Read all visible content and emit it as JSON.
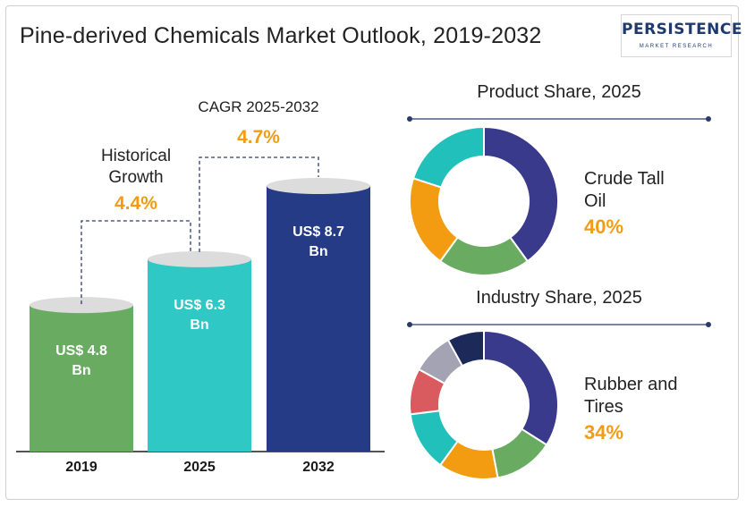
{
  "title": "Pine-derived Chemicals Market Outlook, 2019-2032",
  "logo": {
    "name": "PERSISTENCE",
    "tagline": "MARKET RESEARCH"
  },
  "colors": {
    "green": "#6aab62",
    "teal": "#2fc8c4",
    "navy": "#263b85",
    "donut_navy": "#3a3a8c",
    "donut_green": "#6aab62",
    "donut_orange": "#f39c12",
    "donut_teal": "#21c0bb",
    "donut_red": "#d95a5f",
    "donut_gray": "#a4a3b3",
    "donut_dark": "#1c2a5a",
    "accent": "#f39c12",
    "dashed": "#2c3a6b"
  },
  "chart_data": [
    {
      "type": "bar",
      "categories": [
        "2019",
        "2025",
        "2032"
      ],
      "values": [
        4.8,
        6.3,
        8.7
      ],
      "value_labels": [
        "US$ 4.8 Bn",
        "US$ 6.3 Bn",
        "US$ 8.7 Bn"
      ],
      "annotations": [
        {
          "label": "Historical Growth",
          "value": "4.4%"
        },
        {
          "label": "CAGR 2025-2032",
          "value": "4.7%"
        }
      ]
    },
    {
      "type": "pie",
      "title": "Product Share, 2025",
      "slices": [
        40,
        20,
        20,
        20
      ],
      "colors": [
        "#3a3a8c",
        "#6aab62",
        "#f39c12",
        "#21c0bb"
      ],
      "highlight": {
        "label": "Crude Tall Oil",
        "value": "40%"
      }
    },
    {
      "type": "pie",
      "title": "Industry Share, 2025",
      "slices": [
        34,
        13,
        13,
        13,
        10,
        9,
        8
      ],
      "colors": [
        "#3a3a8c",
        "#6aab62",
        "#f39c12",
        "#21c0bb",
        "#d95a5f",
        "#a4a3b3",
        "#1c2a5a"
      ],
      "highlight": {
        "label": "Rubber and Tires",
        "value": "34%"
      }
    }
  ]
}
